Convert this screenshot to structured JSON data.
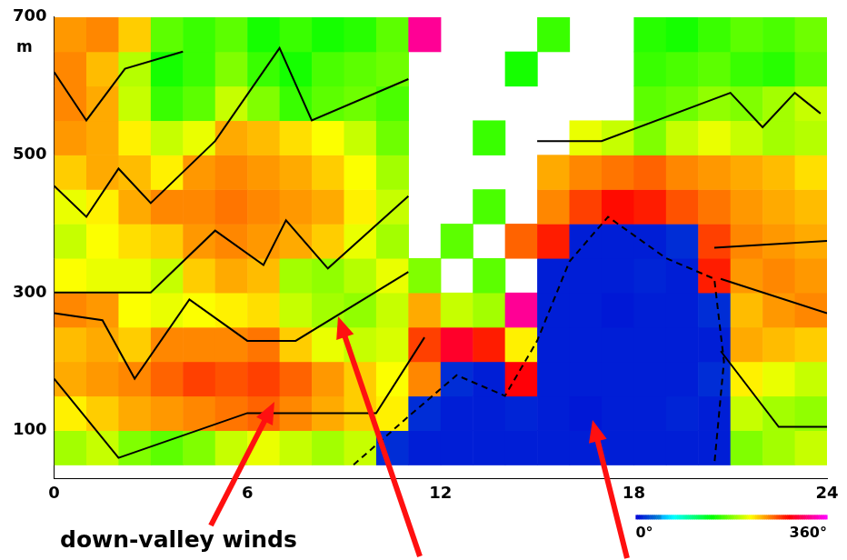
{
  "chart_data": {
    "type": "heatmap",
    "ylabel": "m",
    "annotations": [
      "down-valley winds"
    ],
    "x": [
      0.5,
      1.5,
      2.5,
      3.5,
      4.5,
      5.5,
      6.5,
      7.5,
      8.5,
      9.5,
      10.5,
      11.5,
      12.5,
      13.5,
      14.5,
      15.5,
      16.5,
      17.5,
      18.5,
      19.5,
      20.5,
      21.5,
      22.5,
      23.5
    ],
    "y": [
      75,
      125,
      175,
      225,
      275,
      325,
      375,
      425,
      475,
      525,
      575,
      625,
      675
    ],
    "cells": [
      [
        190,
        200,
        180,
        170,
        180,
        200,
        210,
        200,
        190,
        200,
        15,
        10,
        10,
        10,
        10,
        10,
        10,
        10,
        10,
        10,
        10,
        180,
        190,
        200
      ],
      [
        220,
        230,
        240,
        245,
        250,
        255,
        260,
        250,
        240,
        230,
        220,
        15,
        10,
        10,
        12,
        10,
        8,
        10,
        10,
        12,
        10,
        200,
        190,
        185
      ],
      [
        240,
        245,
        250,
        260,
        270,
        265,
        270,
        260,
        245,
        230,
        215,
        250,
        15,
        10,
        290,
        10,
        10,
        10,
        10,
        10,
        15,
        220,
        210,
        200
      ],
      [
        235,
        240,
        230,
        250,
        250,
        250,
        255,
        230,
        210,
        200,
        205,
        270,
        300,
        280,
        220,
        10,
        10,
        10,
        10,
        10,
        10,
        240,
        235,
        230
      ],
      [
        250,
        245,
        215,
        210,
        215,
        220,
        225,
        200,
        190,
        185,
        200,
        240,
        200,
        190,
        330,
        10,
        10,
        8,
        10,
        10,
        15,
        235,
        245,
        250
      ],
      [
        215,
        210,
        210,
        200,
        230,
        240,
        235,
        190,
        185,
        195,
        210,
        180,
        null,
        170,
        null,
        10,
        10,
        10,
        12,
        10,
        280,
        245,
        250,
        245
      ],
      [
        200,
        215,
        225,
        230,
        245,
        250,
        245,
        240,
        230,
        210,
        190,
        null,
        170,
        null,
        260,
        280,
        10,
        10,
        10,
        15,
        270,
        250,
        245,
        240
      ],
      [
        210,
        220,
        240,
        250,
        250,
        255,
        250,
        245,
        240,
        220,
        200,
        null,
        null,
        165,
        null,
        250,
        270,
        285,
        280,
        265,
        255,
        245,
        240,
        235
      ],
      [
        230,
        240,
        235,
        220,
        245,
        250,
        245,
        240,
        230,
        215,
        190,
        null,
        null,
        null,
        null,
        240,
        250,
        255,
        260,
        250,
        245,
        240,
        235,
        225
      ],
      [
        245,
        240,
        220,
        200,
        210,
        240,
        235,
        225,
        215,
        200,
        175,
        null,
        null,
        160,
        null,
        null,
        210,
        200,
        180,
        200,
        210,
        200,
        190,
        195
      ],
      [
        250,
        240,
        200,
        160,
        170,
        200,
        180,
        160,
        170,
        175,
        165,
        null,
        null,
        null,
        null,
        null,
        null,
        null,
        170,
        175,
        185,
        180,
        190,
        200
      ],
      [
        250,
        235,
        195,
        150,
        160,
        180,
        160,
        150,
        165,
        170,
        175,
        null,
        null,
        null,
        150,
        null,
        null,
        null,
        160,
        165,
        170,
        160,
        155,
        170
      ],
      [
        245,
        250,
        230,
        170,
        160,
        170,
        150,
        160,
        150,
        155,
        170,
        330,
        null,
        null,
        null,
        160,
        null,
        null,
        155,
        150,
        160,
        170,
        165,
        175
      ]
    ],
    "xlim": [
      0,
      24
    ],
    "ylim": [
      30,
      700
    ],
    "xticks": [
      0,
      6,
      12,
      18,
      24
    ],
    "yticks": [
      100,
      300,
      500,
      700
    ],
    "grid": false,
    "colorbar": {
      "range": [
        0,
        360
      ],
      "ticks": [
        {
          "value": 0,
          "label": "0°"
        },
        {
          "value": 360,
          "label": "360°"
        }
      ]
    },
    "lines": [
      {
        "line_style": "solid",
        "points": [
          [
            0,
            620
          ],
          [
            1,
            550
          ],
          [
            2.2,
            625
          ],
          [
            4,
            650
          ]
        ]
      },
      {
        "line_style": "solid",
        "points": [
          [
            0,
            455
          ],
          [
            1,
            410
          ],
          [
            2,
            480
          ],
          [
            3,
            430
          ],
          [
            5,
            520
          ],
          [
            7,
            655
          ],
          [
            8,
            550
          ],
          [
            11,
            610
          ]
        ]
      },
      {
        "line_style": "solid",
        "points": [
          [
            0,
            300
          ],
          [
            3,
            300
          ],
          [
            5,
            390
          ],
          [
            6.5,
            340
          ],
          [
            7.2,
            405
          ],
          [
            8.5,
            335
          ],
          [
            11,
            440
          ]
        ]
      },
      {
        "line_style": "solid",
        "points": [
          [
            0,
            270
          ],
          [
            1.5,
            260
          ],
          [
            2.5,
            175
          ],
          [
            4.2,
            290
          ],
          [
            6,
            230
          ],
          [
            7.5,
            230
          ],
          [
            11,
            330
          ]
        ]
      },
      {
        "line_style": "solid",
        "points": [
          [
            0,
            175
          ],
          [
            2,
            60
          ],
          [
            6,
            125
          ],
          [
            10,
            125
          ],
          [
            11.5,
            235
          ]
        ]
      },
      {
        "line_style": "solid",
        "points": [
          [
            15,
            520
          ],
          [
            17,
            520
          ],
          [
            21,
            590
          ],
          [
            22,
            540
          ],
          [
            23,
            590
          ],
          [
            23.8,
            560
          ]
        ]
      },
      {
        "line_style": "solid",
        "points": [
          [
            20.5,
            365
          ],
          [
            24,
            375
          ]
        ]
      },
      {
        "line_style": "solid",
        "points": [
          [
            20.7,
            320
          ],
          [
            24,
            270
          ]
        ]
      },
      {
        "line_style": "solid",
        "points": [
          [
            20.7,
            215
          ],
          [
            22.5,
            105
          ],
          [
            24,
            105
          ]
        ]
      },
      {
        "line_style": "dashed",
        "points": [
          [
            9.3,
            50
          ],
          [
            11,
            120
          ],
          [
            12.5,
            180
          ],
          [
            14,
            150
          ],
          [
            15,
            230
          ],
          [
            16,
            345
          ],
          [
            17.2,
            410
          ],
          [
            19,
            350
          ],
          [
            20.5,
            320
          ],
          [
            20.8,
            200
          ],
          [
            20.5,
            50
          ]
        ]
      }
    ]
  }
}
